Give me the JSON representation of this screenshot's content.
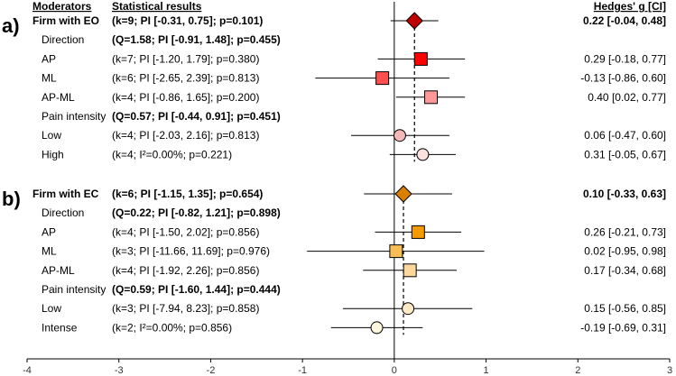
{
  "chart_data": {
    "type": "forest",
    "headers": {
      "moderators": "Moderators",
      "stats": "Statistical results",
      "effect": "Hedges' g [CI]"
    },
    "xlim": [
      -4,
      3
    ],
    "ticks": [
      -4,
      -3,
      -2,
      -1,
      0,
      1,
      2,
      3
    ],
    "panels": [
      {
        "tag": "a)",
        "rows": [
          {
            "label": "Firm with EO",
            "stats": "(k=9; PI [-0.31, 0.75]; p=0.101)",
            "ci_text": "0.22 [-0.04, 0.48]",
            "g": 0.22,
            "lo": -0.04,
            "hi": 0.48,
            "shape": "diamond",
            "color": "#c00000",
            "bold": true,
            "level": 0
          },
          {
            "label": "Direction",
            "stats": "(Q=1.58; PI [-0.91, 1.48]; p=0.455)",
            "bold": true,
            "level": 1
          },
          {
            "label": "AP",
            "stats": "(k=7; PI [-1.20, 1.79]; p=0.380)",
            "ci_text": "0.29 [-0.18, 0.77]",
            "g": 0.29,
            "lo": -0.18,
            "hi": 0.77,
            "shape": "square",
            "color": "#ff0000",
            "level": 2
          },
          {
            "label": "ML",
            "stats": "(k=6; PI [-2.65, 2.39]; p=0.813)",
            "ci_text": "-0.13 [-0.86, 0.60]",
            "g": -0.13,
            "lo": -0.86,
            "hi": 0.6,
            "shape": "square",
            "color": "#ff5050",
            "level": 2
          },
          {
            "label": "AP-ML",
            "stats": "(k=4; PI [-0.86, 1.65]; p=0.200)",
            "ci_text": "0.40 [0.02, 0.77]",
            "g": 0.4,
            "lo": 0.02,
            "hi": 0.77,
            "shape": "square",
            "color": "#ff9999",
            "level": 2
          },
          {
            "label": "Pain intensity",
            "stats": "(Q=0.57; PI [-0.44, 0.91]; p=0.451)",
            "bold": true,
            "level": 1
          },
          {
            "label": "Low",
            "stats": "(k=4; PI [-2.03, 2.16]; p=0.813)",
            "ci_text": "0.06 [-0.47, 0.60]",
            "g": 0.06,
            "lo": -0.47,
            "hi": 0.6,
            "shape": "circle",
            "color": "#f4b8b8",
            "level": 2
          },
          {
            "label": "High",
            "stats": "(k=4; I²=0.00%; p=0.221)",
            "ci_text": "0.31 [-0.05, 0.67]",
            "g": 0.31,
            "lo": -0.05,
            "hi": 0.67,
            "shape": "circle",
            "color": "#fde0e0",
            "level": 2
          }
        ]
      },
      {
        "tag": "b)",
        "rows": [
          {
            "label": "Firm with EC",
            "stats": "(k=6; PI [-1.15, 1.35]; p=0.654)",
            "ci_text": "0.10 [-0.33, 0.63]",
            "g": 0.1,
            "lo": -0.33,
            "hi": 0.63,
            "shape": "diamond",
            "color": "#d98000",
            "bold": true,
            "level": 0
          },
          {
            "label": "Direction",
            "stats": "(Q=0.22; PI [-0.82, 1.21]; p=0.898)",
            "bold": true,
            "level": 1
          },
          {
            "label": "AP",
            "stats": "(k=4; PI [-1.50, 2.02]; p=0.856)",
            "ci_text": "0.26 [-0.21, 0.73]",
            "g": 0.26,
            "lo": -0.21,
            "hi": 0.73,
            "shape": "square",
            "color": "#f59a00",
            "level": 2
          },
          {
            "label": "ML",
            "stats": "(k=3; PI [-11.66, 11.69]; p=0.976)",
            "ci_text": "0.02 [-0.95, 0.98]",
            "g": 0.02,
            "lo": -0.95,
            "hi": 0.98,
            "shape": "square",
            "color": "#f8bd55",
            "level": 2
          },
          {
            "label": "AP-ML",
            "stats": "(k=4; PI [-1.92, 2.26]; p=0.856)",
            "ci_text": "0.17 [-0.34, 0.68]",
            "g": 0.17,
            "lo": -0.34,
            "hi": 0.68,
            "shape": "square",
            "color": "#fcd99a",
            "level": 2
          },
          {
            "label": "Pain intensity",
            "stats": "(Q=0.59; PI [-1.60, 1.44]; p=0.444)",
            "bold": true,
            "level": 1
          },
          {
            "label": "Low",
            "stats": "(k=3; PI [-7.94, 8.23]; p=0.858)",
            "ci_text": "0.15 [-0.56, 0.85]",
            "g": 0.15,
            "lo": -0.56,
            "hi": 0.85,
            "shape": "circle",
            "color": "#fde9c5",
            "level": 2
          },
          {
            "label": "Intense",
            "stats": "(k=2; I²=0.00%; p=0.856)",
            "ci_text": "-0.19 [-0.69, 0.31]",
            "g": -0.19,
            "lo": -0.69,
            "hi": 0.31,
            "shape": "circle",
            "color": "#fff6e0",
            "level": 2
          }
        ]
      }
    ]
  }
}
